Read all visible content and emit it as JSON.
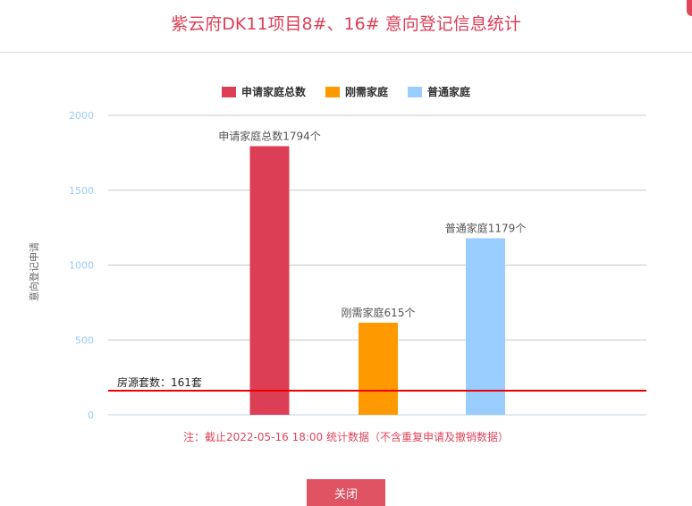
{
  "title": "紫云府DK11项目8#、16# 意向登记信息统计",
  "legend": [
    {
      "label": "申请家庭总数",
      "color": "#dc3e55"
    },
    {
      "label": "刚需家庭",
      "color": "#ff9900"
    },
    {
      "label": "普通家庭",
      "color": "#99ccff"
    }
  ],
  "note": "注：截止2022-05-16 18:00 统计数据（不含重复申请及撤销数据）",
  "close_label": "关闭",
  "reference_line": {
    "label": "房源套数：161套",
    "value": 161,
    "color": "#ee0000"
  },
  "chart_data": {
    "type": "bar",
    "title": "紫云府DK11项目8#、16# 意向登记信息统计",
    "xlabel": "",
    "ylabel": "意向登记申请",
    "ylim": [
      0,
      2000
    ],
    "yticks": [
      0,
      500,
      1000,
      1500,
      2000
    ],
    "grid": true,
    "legend_position": "top",
    "categories": [
      "申请家庭总数",
      "刚需家庭",
      "普通家庭"
    ],
    "values": [
      1794,
      615,
      1179
    ],
    "colors": [
      "#dc3e55",
      "#ff9900",
      "#99ccff"
    ],
    "data_labels": [
      "申请家庭总数1794个",
      "刚需家庭615个",
      "普通家庭1179个"
    ],
    "annotations": [
      {
        "type": "hline",
        "y": 161,
        "label": "房源套数：161套",
        "color": "#ee0000"
      }
    ]
  }
}
